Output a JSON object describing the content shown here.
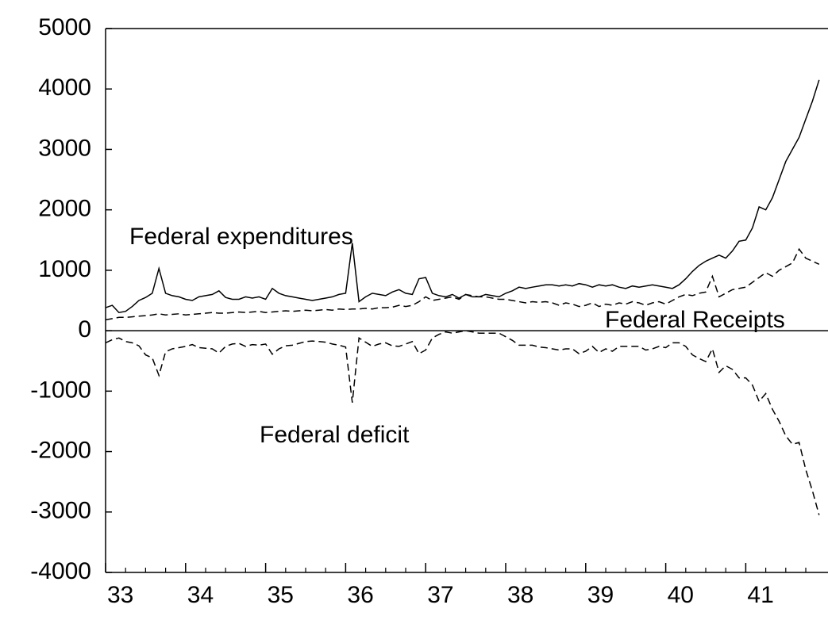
{
  "chart_data": {
    "type": "line",
    "categories": [
      "33",
      null,
      null,
      null,
      null,
      null,
      null,
      null,
      null,
      null,
      null,
      null,
      "34",
      null,
      null,
      null,
      null,
      null,
      null,
      null,
      null,
      null,
      null,
      null,
      "35",
      null,
      null,
      null,
      null,
      null,
      null,
      null,
      null,
      null,
      null,
      null,
      "36",
      null,
      null,
      null,
      null,
      null,
      null,
      null,
      null,
      null,
      null,
      null,
      "37",
      null,
      null,
      null,
      null,
      null,
      null,
      null,
      null,
      null,
      null,
      null,
      "38",
      null,
      null,
      null,
      null,
      null,
      null,
      null,
      null,
      null,
      null,
      null,
      "39",
      null,
      null,
      null,
      null,
      null,
      null,
      null,
      null,
      null,
      null,
      null,
      "40",
      null,
      null,
      null,
      null,
      null,
      null,
      null,
      null,
      null,
      null,
      null,
      "41",
      null,
      null,
      null,
      null,
      null,
      null,
      null,
      null,
      null,
      null,
      null
    ],
    "series": [
      {
        "name": "Federal expenditures",
        "color": "#000000",
        "style": "solid",
        "values": [
          380,
          420,
          300,
          320,
          400,
          500,
          550,
          620,
          1030,
          620,
          580,
          560,
          520,
          500,
          560,
          580,
          600,
          660,
          550,
          520,
          520,
          560,
          540,
          560,
          520,
          700,
          620,
          580,
          560,
          540,
          520,
          500,
          520,
          540,
          560,
          600,
          620,
          1450,
          480,
          560,
          620,
          600,
          580,
          640,
          680,
          620,
          600,
          860,
          880,
          620,
          580,
          560,
          600,
          540,
          600,
          560,
          560,
          600,
          580,
          560,
          620,
          660,
          720,
          700,
          720,
          740,
          760,
          760,
          740,
          760,
          740,
          780,
          760,
          720,
          760,
          740,
          760,
          720,
          700,
          740,
          720,
          740,
          760,
          740,
          720,
          700,
          760,
          860,
          980,
          1080,
          1150,
          1200,
          1250,
          1200,
          1320,
          1480,
          1500,
          1700,
          2050,
          2000,
          2200,
          2500,
          2800,
          3000,
          3200,
          3500,
          3800,
          4150
        ]
      },
      {
        "name": "Federal Receipts",
        "color": "#000000",
        "style": "dashed",
        "values": [
          180,
          200,
          220,
          220,
          230,
          240,
          250,
          260,
          280,
          260,
          270,
          280,
          260,
          270,
          280,
          290,
          300,
          290,
          290,
          300,
          310,
          300,
          310,
          320,
          300,
          310,
          320,
          330,
          320,
          330,
          340,
          330,
          340,
          350,
          340,
          360,
          350,
          360,
          360,
          370,
          360,
          380,
          380,
          390,
          420,
          400,
          420,
          480,
          560,
          500,
          520,
          540,
          560,
          520,
          600,
          580,
          560,
          560,
          540,
          520,
          520,
          500,
          480,
          460,
          480,
          470,
          480,
          460,
          420,
          460,
          440,
          400,
          420,
          460,
          400,
          440,
          420,
          460,
          440,
          480,
          460,
          420,
          460,
          480,
          440,
          500,
          560,
          600,
          580,
          620,
          640,
          900,
          560,
          620,
          680,
          700,
          720,
          800,
          880,
          960,
          900,
          1000,
          1060,
          1120,
          1350,
          1200,
          1150,
          1100
        ]
      },
      {
        "name": "Federal deficit",
        "color": "#000000",
        "style": "dashed",
        "values": [
          -200,
          -150,
          -120,
          -180,
          -200,
          -250,
          -400,
          -450,
          -740,
          -350,
          -300,
          -280,
          -260,
          -230,
          -280,
          -290,
          -300,
          -370,
          -260,
          -220,
          -210,
          -260,
          -230,
          -240,
          -220,
          -390,
          -300,
          -250,
          -240,
          -210,
          -180,
          -170,
          -180,
          -190,
          -220,
          -240,
          -270,
          -1190,
          -120,
          -190,
          -260,
          -220,
          -200,
          -250,
          -260,
          -220,
          -180,
          -380,
          -320,
          -120,
          -60,
          -20,
          -40,
          -20,
          0,
          -20,
          -40,
          -40,
          -40,
          -40,
          -100,
          -160,
          -240,
          -240,
          -240,
          -270,
          -280,
          -300,
          -320,
          -300,
          -300,
          -380,
          -340,
          -260,
          -360,
          -300,
          -340,
          -260,
          -260,
          -260,
          -260,
          -320,
          -300,
          -260,
          -280,
          -200,
          -200,
          -260,
          -400,
          -460,
          -510,
          -300,
          -690,
          -580,
          -640,
          -780,
          -780,
          -900,
          -1170,
          -1040,
          -1300,
          -1500,
          -1740,
          -1880,
          -1850,
          -2300,
          -2650,
          -3050
        ]
      }
    ],
    "ylim": [
      -4000,
      5000
    ],
    "yticks": [
      -4000,
      -3000,
      -2000,
      -1000,
      0,
      1000,
      2000,
      3000,
      4000,
      5000
    ],
    "grid": false,
    "zero_line": true
  }
}
